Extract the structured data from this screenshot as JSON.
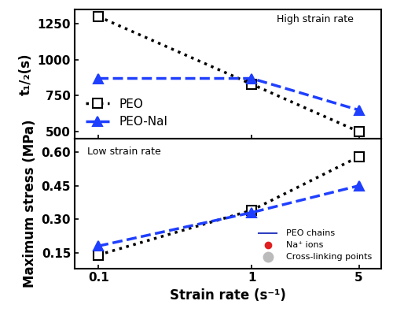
{
  "chart_data": [
    {
      "type": "line",
      "y_label": "t₁/₂(s)",
      "x": [
        0.1,
        1,
        5
      ],
      "series": [
        {
          "name": "PEO",
          "color": "#000000",
          "marker": "square",
          "line_style": "dotted",
          "values": [
            1300,
            830,
            500
          ]
        },
        {
          "name": "PEO-NaI",
          "color": "#1f3fff",
          "marker": "triangle",
          "line_style": "dashed",
          "values": [
            870,
            870,
            650
          ]
        }
      ],
      "log": "x",
      "xlim": [
        0.07,
        7
      ],
      "xticks": [
        0.1,
        1,
        5
      ],
      "ylim": [
        450,
        1350
      ],
      "yticks": [
        500,
        750,
        1000,
        1250
      ],
      "tick_labels": "y",
      "legend": "lower left",
      "annotations": [
        "High strain rate"
      ]
    },
    {
      "type": "line",
      "x_label": "Strain rate (s⁻¹)",
      "y_label": "Maximum stress (MPa)",
      "x": [
        0.1,
        1,
        5
      ],
      "series": [
        {
          "name": "PEO",
          "color": "#000000",
          "marker": "square",
          "line_style": "dotted",
          "values": [
            0.14,
            0.34,
            0.58
          ]
        },
        {
          "name": "PEO-NaI",
          "color": "#1f3fff",
          "marker": "triangle",
          "line_style": "dashed",
          "values": [
            0.18,
            0.33,
            0.45
          ]
        }
      ],
      "log": "x",
      "xlim": [
        0.07,
        7
      ],
      "xticks": [
        0.1,
        1,
        5
      ],
      "ylim": [
        0.08,
        0.66
      ],
      "yticks": [
        {
          "value": 0.15,
          "label": "0.15"
        },
        {
          "value": 0.3,
          "label": "0.30"
        },
        {
          "value": 0.45,
          "label": "0.45"
        },
        {
          "value": 0.6,
          "label": "0.60"
        }
      ],
      "annotations": [
        "Low strain rate",
        "PEO chains",
        "Na⁺ ions",
        "Cross-linking points"
      ]
    }
  ]
}
